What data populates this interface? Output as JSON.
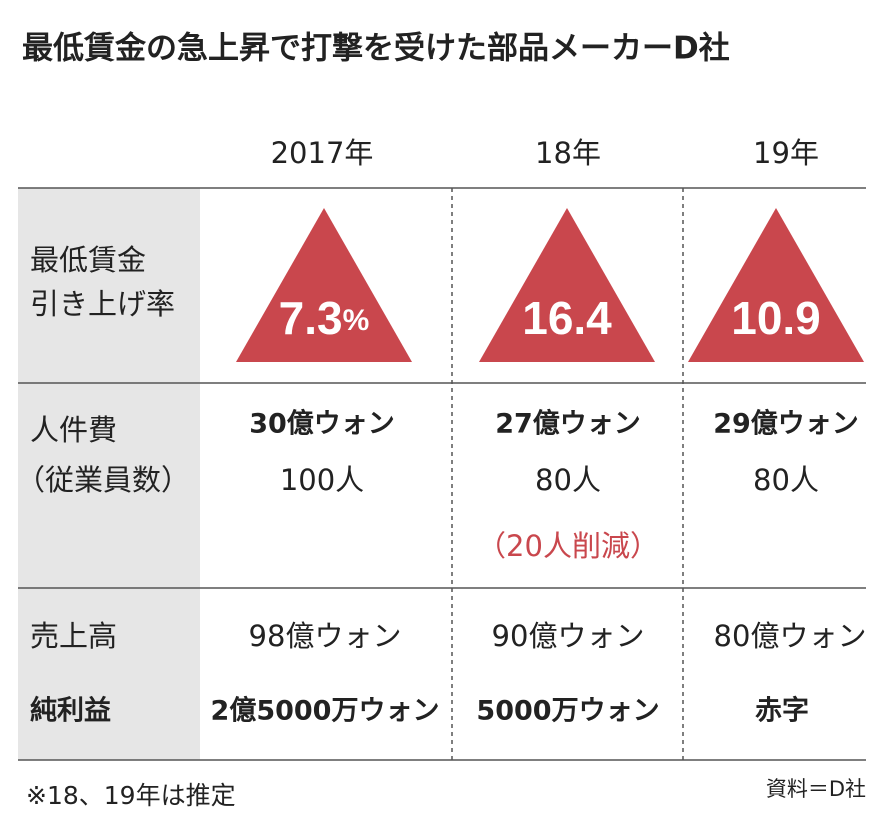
{
  "title": "最低賃金の急上昇で打撃を受けた部品メーカーD社",
  "columns": [
    "2017年",
    "18年",
    "19年"
  ],
  "rows": [
    {
      "label": [
        "最低賃金",
        "引き上げ率"
      ],
      "cells": [
        {
          "value": "7.3",
          "unit": "%"
        },
        {
          "value": "16.4"
        },
        {
          "value": "10.9"
        }
      ]
    },
    {
      "label": [
        "人件費",
        "（従業員数）"
      ],
      "cells": [
        {
          "cost": "30億ウォン",
          "staff": "100人"
        },
        {
          "cost": "27億ウォン",
          "staff": "80人",
          "note": "（20人削減）"
        },
        {
          "cost": "29億ウォン",
          "staff": "80人"
        }
      ]
    },
    {
      "label": [
        "売上高",
        "純利益"
      ],
      "cells": [
        [
          "98億ウォン",
          "2億5000万ウォン"
        ],
        [
          "90億ウォン",
          "5000万ウォン"
        ],
        [
          "80億ウォン",
          "赤字"
        ]
      ]
    }
  ],
  "note": "※18、19年は推定",
  "source": "資料＝D社"
}
